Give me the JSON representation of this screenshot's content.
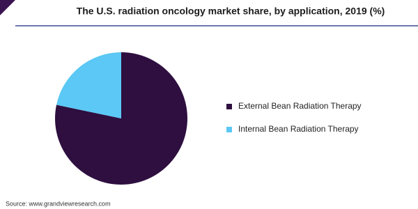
{
  "chart_data": {
    "type": "pie",
    "title": "The U.S. radiation oncology market share, by application, 2019 (%)",
    "categories": [
      "External Bean Radiation Therapy",
      "Internal Bean Radiation Therapy"
    ],
    "values": [
      78.3,
      21.7
    ],
    "colors": [
      "#2e0f3f",
      "#5bc8f5"
    ],
    "source": "Source: www.grandviewresearch.com"
  }
}
